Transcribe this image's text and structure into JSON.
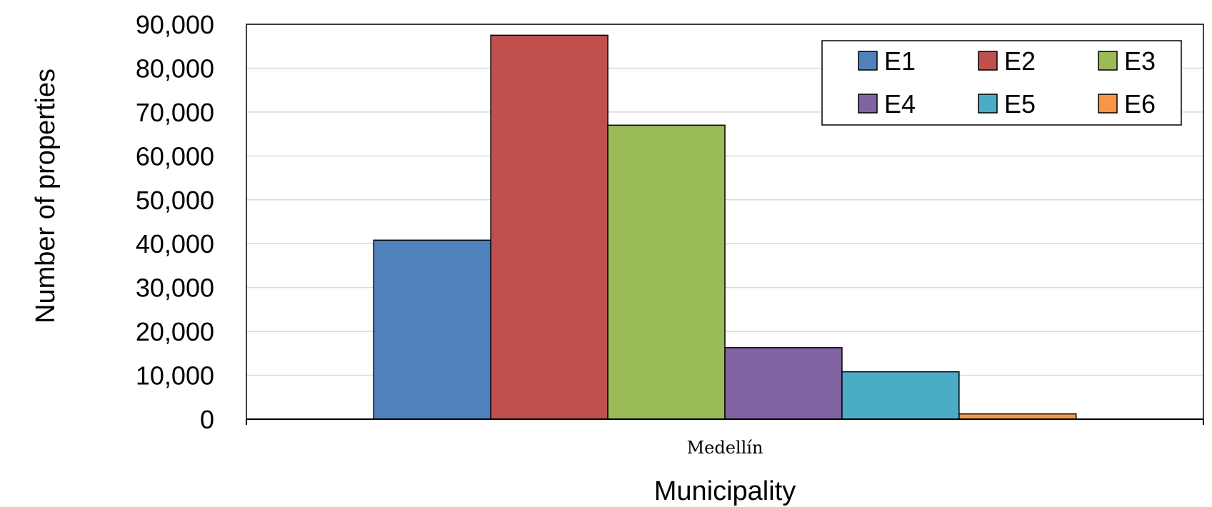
{
  "chart_data": {
    "type": "bar",
    "categories": [
      "Medellín"
    ],
    "series": [
      {
        "name": "E1",
        "values": [
          40800
        ],
        "color": "#4f81bd"
      },
      {
        "name": "E2",
        "values": [
          87500
        ],
        "color": "#c0504d"
      },
      {
        "name": "E3",
        "values": [
          67000
        ],
        "color": "#9bbb59"
      },
      {
        "name": "E4",
        "values": [
          16300
        ],
        "color": "#8064a2"
      },
      {
        "name": "E5",
        "values": [
          10800
        ],
        "color": "#4bacc6"
      },
      {
        "name": "E6",
        "values": [
          1200
        ],
        "color": "#f79646"
      }
    ],
    "xlabel": "Municipality",
    "ylabel": "Number of properties",
    "ylim": [
      0,
      90000
    ],
    "yticks": [
      0,
      10000,
      20000,
      30000,
      40000,
      50000,
      60000,
      70000,
      80000,
      90000
    ],
    "ytick_labels": [
      "0",
      "10,000",
      "20,000",
      "30,000",
      "40,000",
      "50,000",
      "60,000",
      "70,000",
      "80,000",
      "90,000"
    ],
    "grid": true,
    "legend_position": "top-right"
  }
}
